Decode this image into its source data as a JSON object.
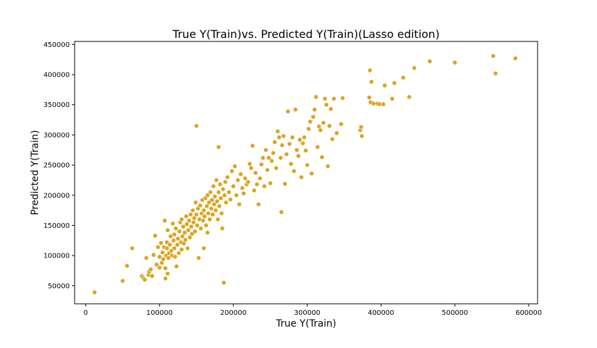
{
  "chart_data": {
    "type": "scatter",
    "title": "True Y(Train)vs. Predicted Y(Train)(Lasso edition)",
    "xlabel": "True Y(Train)",
    "ylabel": "Predicted Y(Train)",
    "xlim": [
      -15000,
      612000
    ],
    "ylim": [
      20000,
      455000
    ],
    "xticks": [
      0,
      100000,
      200000,
      300000,
      400000,
      500000,
      600000
    ],
    "xtick_labels": [
      "0",
      "100000",
      "200000",
      "300000",
      "400000",
      "500000",
      "600000"
    ],
    "yticks": [
      50000,
      100000,
      150000,
      200000,
      250000,
      300000,
      350000,
      400000,
      450000
    ],
    "ytick_labels": [
      "50000",
      "100000",
      "150000",
      "200000",
      "250000",
      "300000",
      "350000",
      "400000",
      "450000"
    ],
    "grid": false,
    "legend": false,
    "marker_color": "#daa520",
    "marker_edge_color": "#ffffff",
    "points": [
      [
        12000,
        39000
      ],
      [
        50000,
        58000
      ],
      [
        56000,
        83000
      ],
      [
        63000,
        112000
      ],
      [
        76000,
        66000
      ],
      [
        78000,
        63000
      ],
      [
        80000,
        60000
      ],
      [
        82000,
        96000
      ],
      [
        85000,
        68000
      ],
      [
        86000,
        73000
      ],
      [
        88000,
        77000
      ],
      [
        90000,
        66000
      ],
      [
        92000,
        101000
      ],
      [
        94000,
        133000
      ],
      [
        96000,
        85000
      ],
      [
        98000,
        114000
      ],
      [
        100000,
        80000
      ],
      [
        100000,
        98000
      ],
      [
        102000,
        121000
      ],
      [
        103000,
        88000
      ],
      [
        104000,
        105000
      ],
      [
        105000,
        94000
      ],
      [
        106000,
        114000
      ],
      [
        107000,
        158000
      ],
      [
        108000,
        62000
      ],
      [
        108000,
        79000
      ],
      [
        109000,
        100000
      ],
      [
        110000,
        112000
      ],
      [
        110000,
        122000
      ],
      [
        111000,
        70000
      ],
      [
        111000,
        142000
      ],
      [
        112000,
        96000
      ],
      [
        113000,
        104000
      ],
      [
        114000,
        118000
      ],
      [
        115000,
        132000
      ],
      [
        116000,
        108000
      ],
      [
        117000,
        100000
      ],
      [
        118000,
        153000
      ],
      [
        119000,
        125000
      ],
      [
        120000,
        112000
      ],
      [
        120000,
        135000
      ],
      [
        121000,
        98000
      ],
      [
        122000,
        145000
      ],
      [
        123000,
        82000
      ],
      [
        124000,
        118000
      ],
      [
        125000,
        128000
      ],
      [
        126000,
        104000
      ],
      [
        127000,
        140000
      ],
      [
        128000,
        155000
      ],
      [
        129000,
        122000
      ],
      [
        130000,
        110000
      ],
      [
        130000,
        160000
      ],
      [
        131000,
        132000
      ],
      [
        132000,
        148000
      ],
      [
        133000,
        120000
      ],
      [
        134000,
        138000
      ],
      [
        135000,
        126000
      ],
      [
        136000,
        165000
      ],
      [
        137000,
        152000
      ],
      [
        138000,
        112000
      ],
      [
        139000,
        142000
      ],
      [
        140000,
        158000
      ],
      [
        141000,
        130000
      ],
      [
        142000,
        168000
      ],
      [
        143000,
        148000
      ],
      [
        144000,
        136000
      ],
      [
        145000,
        175000
      ],
      [
        146000,
        155000
      ],
      [
        147000,
        162000
      ],
      [
        148000,
        140000
      ],
      [
        149000,
        188000
      ],
      [
        150000,
        315000
      ],
      [
        150000,
        168000
      ],
      [
        151000,
        150000
      ],
      [
        152000,
        178000
      ],
      [
        153000,
        96000
      ],
      [
        154000,
        160000
      ],
      [
        155000,
        183000
      ],
      [
        156000,
        145000
      ],
      [
        157000,
        170000
      ],
      [
        158000,
        192000
      ],
      [
        159000,
        158000
      ],
      [
        160000,
        112000
      ],
      [
        160000,
        175000
      ],
      [
        161000,
        165000
      ],
      [
        162000,
        195000
      ],
      [
        163000,
        150000
      ],
      [
        164000,
        182000
      ],
      [
        165000,
        138000
      ],
      [
        165000,
        200000
      ],
      [
        166000,
        170000
      ],
      [
        167000,
        188000
      ],
      [
        168000,
        160000
      ],
      [
        169000,
        205000
      ],
      [
        170000,
        178000
      ],
      [
        171000,
        192000
      ],
      [
        172000,
        168000
      ],
      [
        173000,
        215000
      ],
      [
        174000,
        185000
      ],
      [
        175000,
        198000
      ],
      [
        176000,
        175000
      ],
      [
        177000,
        225000
      ],
      [
        178000,
        190000
      ],
      [
        179000,
        160000
      ],
      [
        180000,
        205000
      ],
      [
        180000,
        280000
      ],
      [
        181000,
        182000
      ],
      [
        182000,
        218000
      ],
      [
        183000,
        195000
      ],
      [
        184000,
        170000
      ],
      [
        185000,
        145000
      ],
      [
        186000,
        210000
      ],
      [
        187000,
        55000
      ],
      [
        188000,
        200000
      ],
      [
        189000,
        222000
      ],
      [
        190000,
        188000
      ],
      [
        192000,
        230000
      ],
      [
        194000,
        205000
      ],
      [
        196000,
        193000
      ],
      [
        198000,
        240000
      ],
      [
        200000,
        215000
      ],
      [
        202000,
        248000
      ],
      [
        204000,
        200000
      ],
      [
        206000,
        225000
      ],
      [
        208000,
        185000
      ],
      [
        210000,
        235000
      ],
      [
        212000,
        212000
      ],
      [
        214000,
        203000
      ],
      [
        216000,
        228000
      ],
      [
        218000,
        218000
      ],
      [
        220000,
        222000
      ],
      [
        222000,
        252000
      ],
      [
        224000,
        245000
      ],
      [
        226000,
        282000
      ],
      [
        228000,
        208000
      ],
      [
        230000,
        237000
      ],
      [
        232000,
        218000
      ],
      [
        234000,
        185000
      ],
      [
        236000,
        228000
      ],
      [
        238000,
        251000
      ],
      [
        240000,
        262000
      ],
      [
        242000,
        215000
      ],
      [
        244000,
        275000
      ],
      [
        246000,
        242000
      ],
      [
        248000,
        262000
      ],
      [
        250000,
        220000
      ],
      [
        252000,
        257000
      ],
      [
        254000,
        270000
      ],
      [
        256000,
        288000
      ],
      [
        258000,
        245000
      ],
      [
        260000,
        306000
      ],
      [
        262000,
        296000
      ],
      [
        264000,
        262000
      ],
      [
        265000,
        172000
      ],
      [
        266000,
        283000
      ],
      [
        268000,
        298000
      ],
      [
        270000,
        219000
      ],
      [
        272000,
        268000
      ],
      [
        274000,
        339000
      ],
      [
        276000,
        285000
      ],
      [
        278000,
        252000
      ],
      [
        280000,
        296000
      ],
      [
        282000,
        240000
      ],
      [
        284000,
        342000
      ],
      [
        286000,
        275000
      ],
      [
        288000,
        265000
      ],
      [
        290000,
        292000
      ],
      [
        292000,
        230000
      ],
      [
        294000,
        286000
      ],
      [
        296000,
        296000
      ],
      [
        298000,
        274000
      ],
      [
        300000,
        250000
      ],
      [
        302000,
        310000
      ],
      [
        304000,
        322000
      ],
      [
        306000,
        236000
      ],
      [
        308000,
        330000
      ],
      [
        310000,
        342000
      ],
      [
        312000,
        363000
      ],
      [
        314000,
        280000
      ],
      [
        316000,
        314000
      ],
      [
        318000,
        308000
      ],
      [
        320000,
        263000
      ],
      [
        322000,
        320000
      ],
      [
        324000,
        360000
      ],
      [
        326000,
        350000
      ],
      [
        328000,
        248000
      ],
      [
        330000,
        315000
      ],
      [
        332000,
        343000
      ],
      [
        334000,
        293000
      ],
      [
        336000,
        360000
      ],
      [
        340000,
        303000
      ],
      [
        346000,
        318000
      ],
      [
        348000,
        361000
      ],
      [
        372000,
        308000
      ],
      [
        373000,
        313000
      ],
      [
        374000,
        298000
      ],
      [
        384000,
        362000
      ],
      [
        385000,
        407000
      ],
      [
        386000,
        354000
      ],
      [
        387000,
        388000
      ],
      [
        390000,
        352000
      ],
      [
        395000,
        352000
      ],
      [
        398000,
        351000
      ],
      [
        403000,
        351000
      ],
      [
        405000,
        382000
      ],
      [
        415000,
        360000
      ],
      [
        418000,
        386000
      ],
      [
        430000,
        395000
      ],
      [
        438000,
        363000
      ],
      [
        445000,
        411000
      ],
      [
        466000,
        422000
      ],
      [
        500000,
        420000
      ],
      [
        552000,
        431000
      ],
      [
        555000,
        402000
      ],
      [
        582000,
        427000
      ]
    ]
  }
}
